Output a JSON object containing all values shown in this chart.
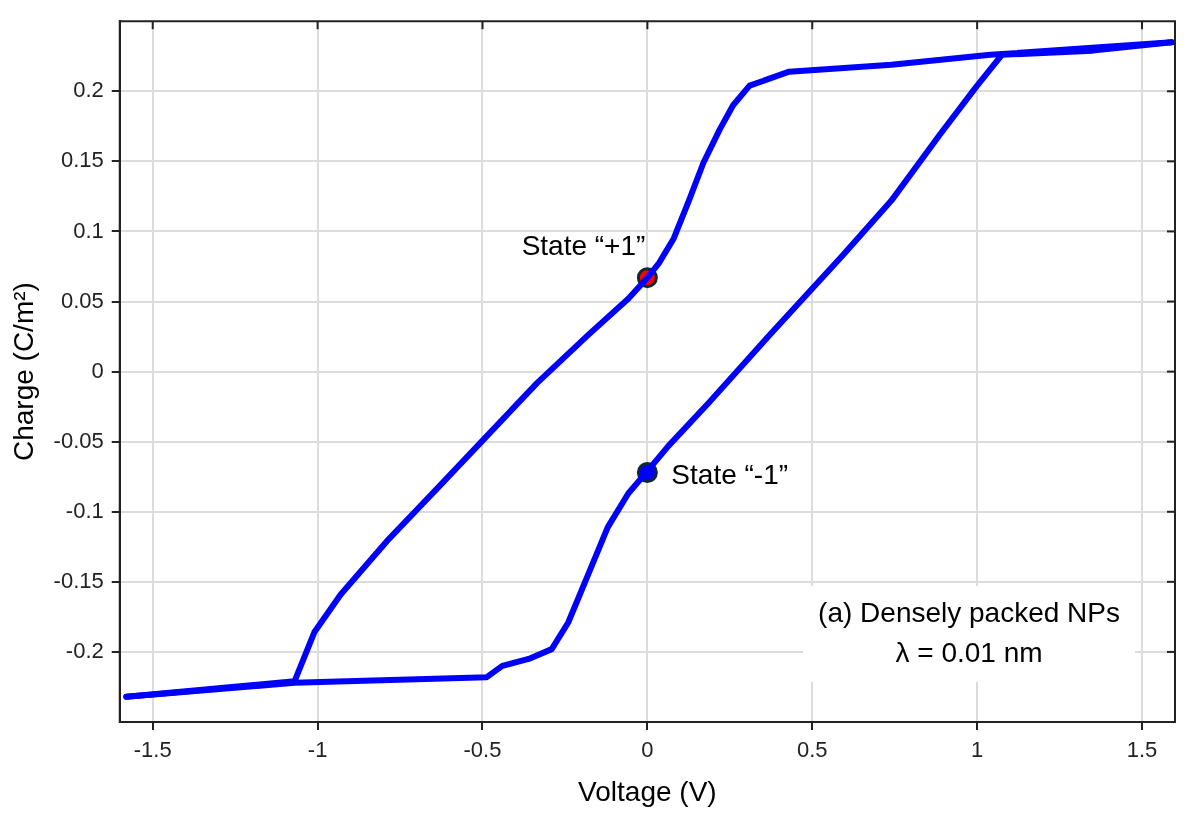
{
  "chart_data": {
    "type": "line",
    "xlabel": "Voltage (V)",
    "ylabel": "Charge (C/m²)",
    "xlim": [
      -1.6,
      1.6
    ],
    "ylim": [
      -0.25,
      0.25
    ],
    "xticks": [
      -1.5,
      -1,
      -0.5,
      0,
      0.5,
      1,
      1.5
    ],
    "yticks": [
      -0.2,
      -0.15,
      -0.1,
      -0.05,
      0,
      0.05,
      0.1,
      0.15,
      0.2
    ],
    "grid": true,
    "legend": false,
    "line_style": "solid",
    "series": [
      {
        "color": "#0000ff",
        "marker": "none",
        "x": [
          -1.58,
          -1.07,
          -1.01,
          -0.93,
          -0.79,
          -0.64,
          -0.487,
          -0.334,
          -0.18,
          -0.058,
          0,
          0.034,
          0.08,
          0.126,
          0.17,
          0.22,
          0.26,
          0.31,
          0.43,
          0.74,
          1.04,
          1.59
        ],
        "values": [
          -0.232,
          -0.221,
          -0.186,
          -0.159,
          -0.121,
          -0.084,
          -0.046,
          -0.008,
          0.026,
          0.052,
          0.067,
          0.077,
          0.095,
          0.122,
          0.149,
          0.173,
          0.19,
          0.204,
          0.214,
          0.219,
          0.226,
          0.235
        ]
      },
      {
        "color": "#0000ff",
        "marker": "none",
        "x": [
          -1.58,
          -1.07,
          -0.487,
          -0.44,
          -0.36,
          -0.29,
          -0.24,
          -0.18,
          -0.12,
          -0.058,
          0,
          0.064,
          0.187,
          0.37,
          0.585,
          0.74,
          0.89,
          1.0,
          1.075,
          1.35,
          1.59
        ],
        "values": [
          -0.232,
          -0.222,
          -0.218,
          -0.21,
          -0.205,
          -0.198,
          -0.179,
          -0.145,
          -0.111,
          -0.087,
          -0.071,
          -0.053,
          -0.022,
          0.026,
          0.081,
          0.122,
          0.17,
          0.204,
          0.226,
          0.229,
          0.235
        ]
      },
      {
        "type": "scatter",
        "color": "#ff0000",
        "marker": "circle",
        "x": [
          0
        ],
        "values": [
          0.067
        ]
      },
      {
        "type": "scatter",
        "color": "#0000ff",
        "marker": "circle",
        "x": [
          0
        ],
        "values": [
          -0.072
        ]
      }
    ],
    "annotations": [
      {
        "text": "State “+1”",
        "x": 0,
        "y": 0.067
      },
      {
        "text": "State “-1”",
        "x": 0,
        "y": -0.072
      },
      "(a) Densely packed NPs",
      "λ = 0.01 nm"
    ]
  }
}
